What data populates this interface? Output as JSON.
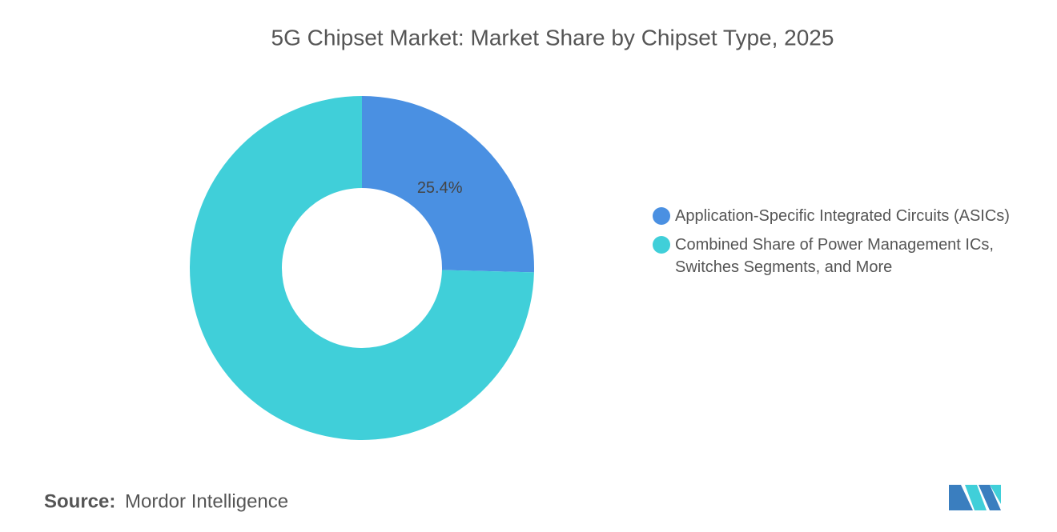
{
  "chart_data": {
    "type": "donut",
    "title": "5G Chipset Market: Market Share by Chipset Type, 2025",
    "categories": [
      "Application-Specific Integrated Circuits (ASICs)",
      "Combined Share of Power Management ICs, Switches Segments, and More"
    ],
    "values": [
      25.4,
      74.6
    ],
    "value_labels": [
      "25.4%",
      null
    ],
    "colors": [
      "#4a90e2",
      "#40cfd9"
    ],
    "source_label": "Source:",
    "source": "Mordor Intelligence"
  }
}
